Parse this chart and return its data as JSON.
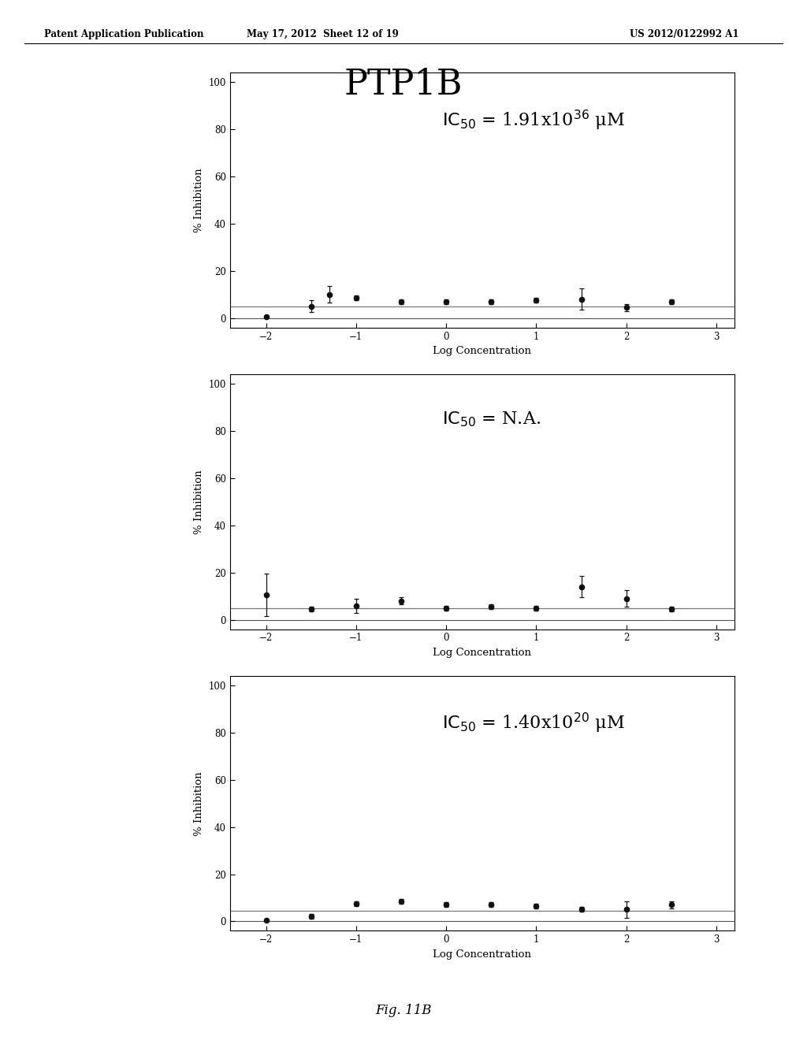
{
  "title_main": "PTP1B",
  "header_left": "Patent Application Publication",
  "header_mid": "May 17, 2012  Sheet 12 of 19",
  "header_right": "US 2012/0122992 A1",
  "footer": "Fig. 11B",
  "plots": [
    {
      "ic50_label": "IC",
      "ic50_sub": "50",
      "ic50_val": " = 1.91x10",
      "ic50_sup": "36",
      "ic50_unit": " μM",
      "x": [
        -2.0,
        -1.5,
        -1.3,
        -1.0,
        -0.5,
        0.0,
        0.5,
        1.0,
        1.5,
        2.0,
        2.5
      ],
      "y": [
        0.5,
        5.0,
        10.0,
        8.5,
        7.0,
        7.0,
        7.0,
        7.5,
        8.0,
        4.5,
        7.0
      ],
      "yerr": [
        0.3,
        2.5,
        3.5,
        1.0,
        1.0,
        1.0,
        1.0,
        1.0,
        4.5,
        1.5,
        1.0
      ],
      "fit_y": 5.0,
      "base_y": 0.0
    },
    {
      "ic50_label": "IC",
      "ic50_sub": "50",
      "ic50_val": " = N.A.",
      "ic50_sup": "",
      "ic50_unit": "",
      "x": [
        -2.0,
        -1.5,
        -1.0,
        -0.5,
        0.0,
        0.5,
        1.0,
        1.5,
        2.0,
        2.5
      ],
      "y": [
        10.5,
        4.5,
        6.0,
        8.0,
        5.0,
        5.5,
        5.0,
        14.0,
        9.0,
        4.5
      ],
      "yerr": [
        9.0,
        1.0,
        3.0,
        1.5,
        1.0,
        1.0,
        1.0,
        4.5,
        3.5,
        1.0
      ],
      "fit_y": 5.0,
      "base_y": 0.0
    },
    {
      "ic50_label": "IC",
      "ic50_sub": "50",
      "ic50_val": " = 1.40x10",
      "ic50_sup": "20",
      "ic50_unit": " μM",
      "x": [
        -2.0,
        -1.5,
        -1.0,
        -0.5,
        0.0,
        0.5,
        1.0,
        1.5,
        2.0,
        2.5
      ],
      "y": [
        0.5,
        2.0,
        7.5,
        8.5,
        7.0,
        7.0,
        6.5,
        5.0,
        5.0,
        7.0
      ],
      "yerr": [
        0.3,
        1.0,
        1.0,
        1.0,
        1.0,
        1.0,
        1.0,
        1.0,
        3.5,
        1.5
      ],
      "fit_y": 4.5,
      "base_y": 0.0
    }
  ],
  "xlim": [
    -2.4,
    3.2
  ],
  "xticks": [
    -2,
    -1,
    0,
    1,
    2,
    3
  ],
  "ylim": [
    -4,
    104
  ],
  "yticks": [
    0,
    20,
    40,
    60,
    80,
    100
  ],
  "xlabel": "Log Concentration",
  "ylabel": "% Inhibition",
  "bg_color": "#ffffff",
  "plot_bg": "#ffffff",
  "line_color": "#555555",
  "dot_color": "#111111",
  "err_color": "#111111",
  "fit_color": "#777777"
}
